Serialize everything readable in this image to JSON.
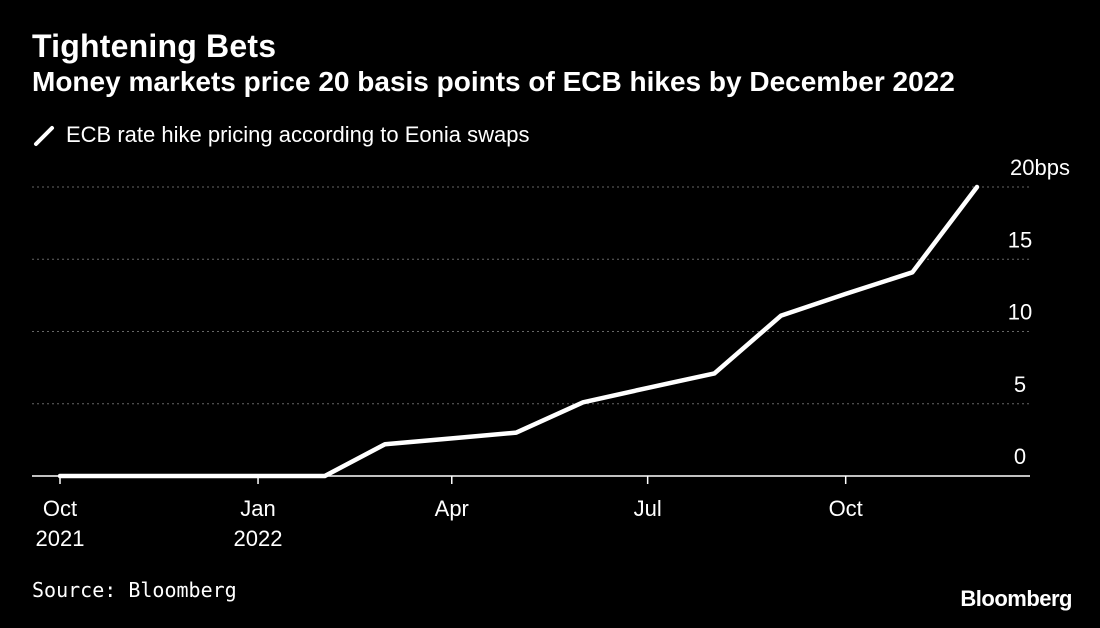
{
  "title": "Tightening Bets",
  "subtitle": "Money markets price 20 basis points of ECB hikes by December 2022",
  "legend": {
    "label": "ECB rate hike pricing according to Eonia swaps"
  },
  "source": "Source: Bloomberg",
  "logo": "Bloomberg",
  "colors": {
    "background": "#000000",
    "line": "#ffffff",
    "grid": "#666666",
    "text": "#ffffff"
  },
  "chart_data": {
    "type": "line",
    "title": "Tightening Bets",
    "subtitle": "Money markets price 20 basis points of ECB hikes by December 2022",
    "xlabel": "",
    "ylabel": "",
    "x_range": [
      "2021-10-01",
      "2022-12-01"
    ],
    "ylim": [
      0,
      20
    ],
    "y_ticks": [
      {
        "value": 0,
        "label": "0"
      },
      {
        "value": 5,
        "label": "5"
      },
      {
        "value": 10,
        "label": "10"
      },
      {
        "value": 15,
        "label": "15"
      },
      {
        "value": 20,
        "label": "20bps"
      }
    ],
    "x_ticks": [
      {
        "date": "2021-10-01",
        "line1": "Oct",
        "line2": "2021"
      },
      {
        "date": "2022-01-01",
        "line1": "Jan",
        "line2": "2022"
      },
      {
        "date": "2022-04-01",
        "line1": "Apr",
        "line2": ""
      },
      {
        "date": "2022-07-01",
        "line1": "Jul",
        "line2": ""
      },
      {
        "date": "2022-10-01",
        "line1": "Oct",
        "line2": ""
      }
    ],
    "grid": true,
    "legend_position": "top-left",
    "series": [
      {
        "name": "ECB rate hike pricing according to Eonia swaps",
        "points": [
          {
            "x": "2021-10-01",
            "y": 0
          },
          {
            "x": "2021-11-01",
            "y": 0
          },
          {
            "x": "2021-12-01",
            "y": 0
          },
          {
            "x": "2022-01-01",
            "y": 0
          },
          {
            "x": "2022-02-01",
            "y": 0
          },
          {
            "x": "2022-03-01",
            "y": 2.2
          },
          {
            "x": "2022-04-01",
            "y": 2.6
          },
          {
            "x": "2022-05-01",
            "y": 3.0
          },
          {
            "x": "2022-06-01",
            "y": 5.1
          },
          {
            "x": "2022-07-01",
            "y": 6.1
          },
          {
            "x": "2022-08-01",
            "y": 7.1
          },
          {
            "x": "2022-09-01",
            "y": 11.1
          },
          {
            "x": "2022-10-01",
            "y": 12.6
          },
          {
            "x": "2022-11-01",
            "y": 14.1
          },
          {
            "x": "2022-12-01",
            "y": 20.0
          }
        ]
      }
    ]
  }
}
